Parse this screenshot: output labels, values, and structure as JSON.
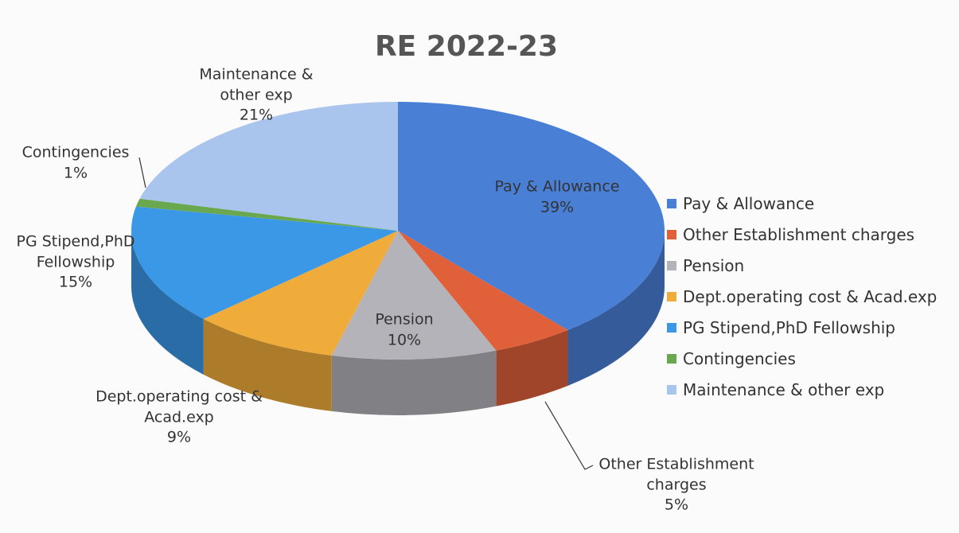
{
  "chart_data": {
    "type": "pie",
    "title": "RE 2022-23",
    "categories": [
      "Pay & Allowance",
      "Other Establishment charges",
      "Pension",
      "Dept.operating cost & Acad.exp",
      "PG Stipend,PhD Fellowship",
      "Contingencies",
      "Maintenance & other exp"
    ],
    "values": [
      39,
      5,
      10,
      9,
      15,
      1,
      21
    ],
    "value_labels": [
      "39%",
      "5%",
      "10%",
      "9%",
      "15%",
      "1%",
      "21%"
    ],
    "colors": [
      "#4a7fd6",
      "#e0603a",
      "#b3b3b9",
      "#f0ac3a",
      "#3a98e6",
      "#6aa84f",
      "#a9c5ee"
    ],
    "legend": "right"
  }
}
